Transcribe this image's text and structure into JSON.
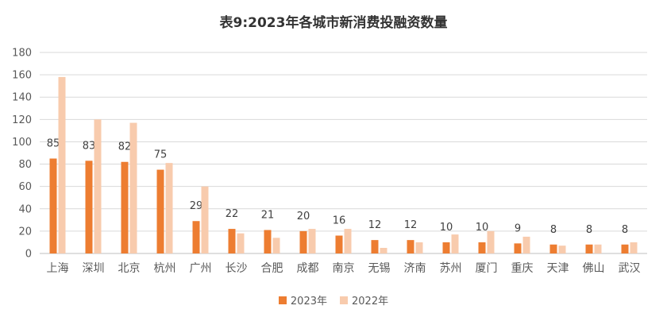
{
  "chart_data": {
    "type": "bar",
    "title": "表9:2023年各城市新消费投融资数量",
    "xlabel": "",
    "ylabel": "",
    "ylim": [
      0,
      180
    ],
    "yticks": [
      "0",
      "20",
      "40",
      "60",
      "80",
      "100",
      "120",
      "140",
      "160",
      "180"
    ],
    "grid": true,
    "legend_position": "bottom",
    "categories": [
      "上海",
      "深圳",
      "北京",
      "杭州",
      "广州",
      "长沙",
      "合肥",
      "成都",
      "南京",
      "无锡",
      "济南",
      "苏州",
      "厦门",
      "重庆",
      "天津",
      "佛山",
      "武汉"
    ],
    "series": [
      {
        "name": "2023年",
        "color": "#ED7D31",
        "values": [
          85,
          83,
          82,
          75,
          29,
          22,
          21,
          20,
          16,
          12,
          12,
          10,
          10,
          9,
          8,
          8,
          8
        ],
        "data_labels": [
          "85",
          "83",
          "82",
          "75",
          "29",
          "22",
          "21",
          "20",
          "16",
          "12",
          "12",
          "10",
          "10",
          "9",
          "8",
          "8",
          "8"
        ]
      },
      {
        "name": "2022年",
        "color": "#F8CBAD",
        "values": [
          158,
          120,
          117,
          81,
          60,
          18,
          14,
          22,
          22,
          5,
          10,
          17,
          20,
          15,
          7,
          8,
          10
        ]
      }
    ]
  }
}
